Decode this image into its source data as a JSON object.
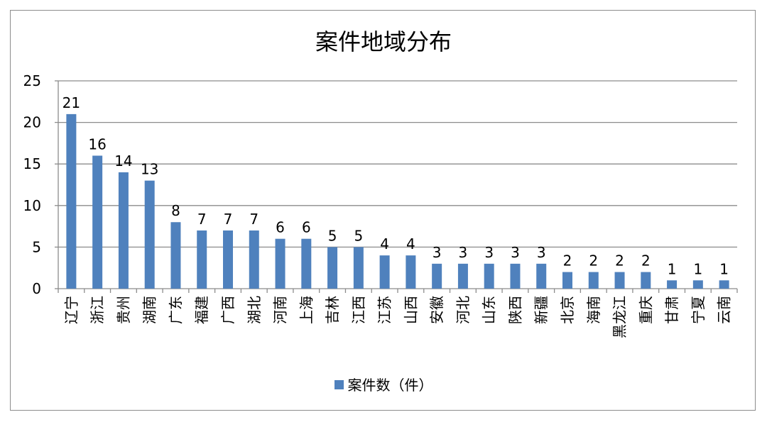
{
  "chart_data": {
    "type": "bar",
    "title": "案件地域分布",
    "categories": [
      "辽宁",
      "浙江",
      "贵州",
      "湖南",
      "广东",
      "福建",
      "广西",
      "湖北",
      "河南",
      "上海",
      "吉林",
      "江西",
      "江苏",
      "山西",
      "安徽",
      "河北",
      "山东",
      "陕西",
      "新疆",
      "北京",
      "海南",
      "黑龙江",
      "重庆",
      "甘肃",
      "宁夏",
      "云南"
    ],
    "series": [
      {
        "name": "案件数（件）",
        "values": [
          21,
          16,
          14,
          13,
          8,
          7,
          7,
          7,
          6,
          6,
          5,
          5,
          4,
          4,
          3,
          3,
          3,
          3,
          3,
          2,
          2,
          2,
          2,
          1,
          1,
          1
        ],
        "color": "#4f81bd"
      }
    ],
    "ylim": [
      0,
      25
    ],
    "yticks": [
      0,
      5,
      10,
      15,
      20,
      25
    ],
    "grid": true,
    "data_labels": true,
    "legend_position": "bottom",
    "gridline_color": "#8c8c8c",
    "axis_color": "#8c8c8c"
  }
}
